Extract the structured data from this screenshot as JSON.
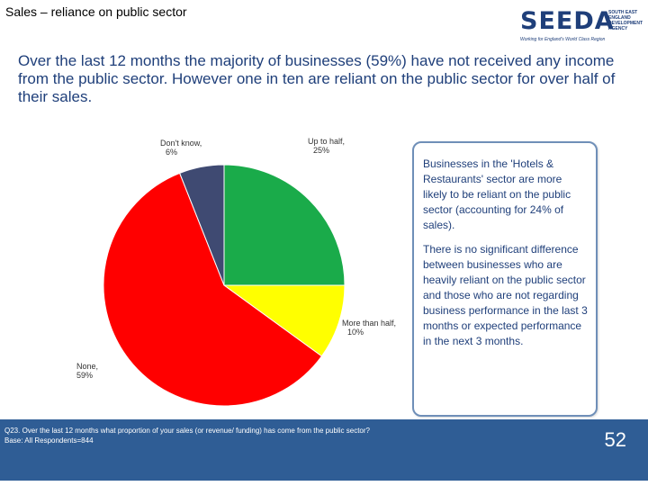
{
  "slide_title": "Sales – reliance on public sector",
  "logo": {
    "name": "SEEDA",
    "side_text": "SOUTH EAST ENGLAND DEVELOPMENT AGENCY",
    "tagline": "Working for England's World Class Region"
  },
  "headline": "Over the last 12 months the majority of businesses (59%) have not received any income from the public sector. However one in ten are reliant on the public sector for over half of their sales.",
  "chart_data": {
    "type": "pie",
    "start_angle_deg": 0,
    "direction": "clockwise",
    "slices": [
      {
        "label": "Up to half, 25%",
        "value": 25,
        "color": "#1aab4a"
      },
      {
        "label": "More than half, 10%",
        "value": 10,
        "color": "#ffff00"
      },
      {
        "label": "None, 59%",
        "value": 59,
        "color": "#ff0000"
      },
      {
        "label": "Don't know, 6%",
        "value": 6,
        "color": "#3f4a72"
      }
    ]
  },
  "callout": {
    "paragraph_1": "Businesses in the 'Hotels & Restaurants' sector are more likely to be reliant on the public sector (accounting for 24% of sales).",
    "paragraph_2": "There is no significant difference between businesses who are heavily reliant on the public sector and those who are not regarding business performance in the last 3 months or expected performance in the next 3 months."
  },
  "footer": {
    "question": "Q23. Over the last 12 months what proportion of your sales (or revenue/ funding) has come from the public sector?",
    "base": "Base: All Respondents=844",
    "page_number": "52"
  }
}
